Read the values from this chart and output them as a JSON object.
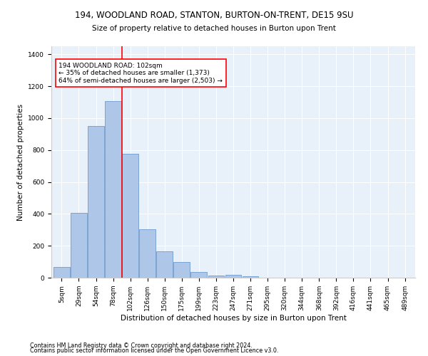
{
  "title": "194, WOODLAND ROAD, STANTON, BURTON-ON-TRENT, DE15 9SU",
  "subtitle": "Size of property relative to detached houses in Burton upon Trent",
  "xlabel": "Distribution of detached houses by size in Burton upon Trent",
  "ylabel": "Number of detached properties",
  "footnote1": "Contains HM Land Registry data © Crown copyright and database right 2024.",
  "footnote2": "Contains public sector information licensed under the Open Government Licence v3.0.",
  "bin_labels": [
    "5sqm",
    "29sqm",
    "54sqm",
    "78sqm",
    "102sqm",
    "126sqm",
    "150sqm",
    "175sqm",
    "199sqm",
    "223sqm",
    "247sqm",
    "271sqm",
    "295sqm",
    "320sqm",
    "344sqm",
    "368sqm",
    "392sqm",
    "416sqm",
    "441sqm",
    "465sqm",
    "489sqm"
  ],
  "bar_values": [
    65,
    405,
    950,
    1105,
    775,
    305,
    165,
    100,
    35,
    15,
    20,
    10,
    0,
    0,
    0,
    0,
    0,
    0,
    0,
    0,
    0
  ],
  "bar_color": "#aec6e8",
  "bar_edge_color": "#5b8fc9",
  "vline_index": 4,
  "vline_color": "red",
  "annotation_text": "194 WOODLAND ROAD: 102sqm\n← 35% of detached houses are smaller (1,373)\n64% of semi-detached houses are larger (2,503) →",
  "annotation_box_color": "white",
  "annotation_box_edge_color": "red",
  "ylim": [
    0,
    1450
  ],
  "yticks": [
    0,
    200,
    400,
    600,
    800,
    1000,
    1200,
    1400
  ],
  "title_fontsize": 8.5,
  "subtitle_fontsize": 7.5,
  "xlabel_fontsize": 7.5,
  "ylabel_fontsize": 7.5,
  "tick_fontsize": 6.5,
  "annot_fontsize": 6.5,
  "footnote_fontsize": 5.8,
  "background_color": "#e8f0fa",
  "figsize": [
    6.0,
    5.0
  ],
  "dpi": 100
}
